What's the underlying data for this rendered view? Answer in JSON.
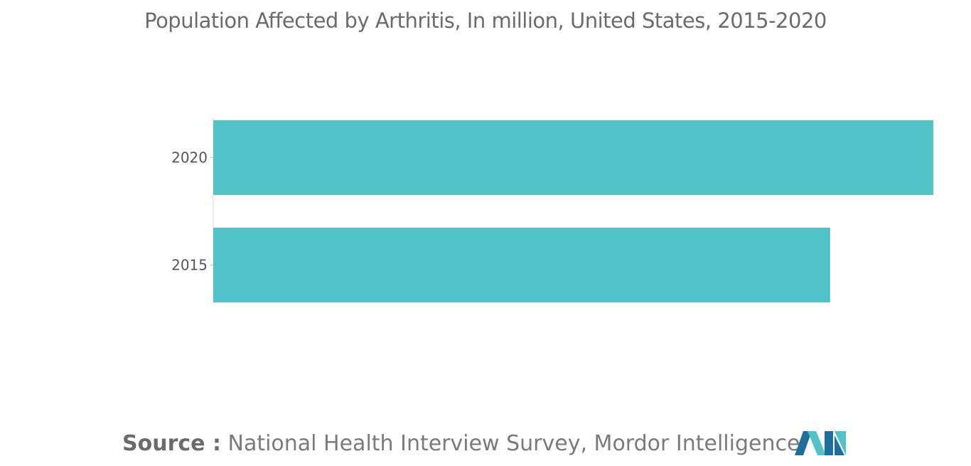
{
  "chart_data": {
    "type": "bar",
    "orientation": "horizontal",
    "title": "Population Affected by Arthritis, In million, United States, 2015-2020",
    "categories": [
      "2020",
      "2015"
    ],
    "values": [
      60,
      51.4
    ],
    "xlim": [
      0,
      60
    ],
    "grid": false,
    "colors": {
      "bar": "#4fc3c8"
    }
  },
  "footer": {
    "source_label": "Source :",
    "source_text": "National Health Interview Survey, Mordor Intelligence"
  },
  "logo": {
    "icon": "mordor-intelligence-logo",
    "colors": [
      "#1f6f9c",
      "#4fc3c8"
    ]
  }
}
